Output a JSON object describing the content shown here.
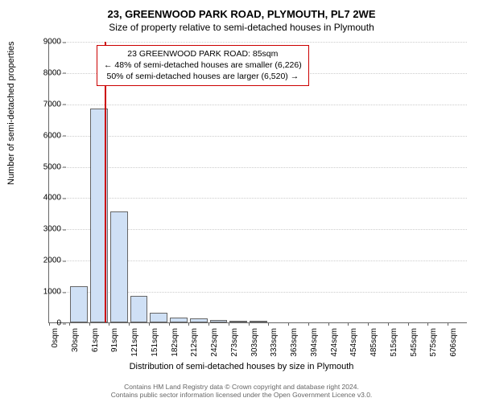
{
  "title_line1": "23, GREENWOOD PARK ROAD, PLYMOUTH, PL7 2WE",
  "title_line2": "Size of property relative to semi-detached houses in Plymouth",
  "chart": {
    "type": "bar",
    "ylabel": "Number of semi-detached properties",
    "xlabel": "Distribution of semi-detached houses by size in Plymouth",
    "ylim": [
      0,
      9000
    ],
    "ytick_step": 1000,
    "bar_fill": "#cfe0f5",
    "bar_border": "#666666",
    "grid_color": "#cccccc",
    "background_color": "#ffffff",
    "bar_width": 0.88,
    "xticks": [
      "0sqm",
      "30sqm",
      "61sqm",
      "91sqm",
      "121sqm",
      "151sqm",
      "182sqm",
      "212sqm",
      "242sqm",
      "273sqm",
      "303sqm",
      "333sqm",
      "363sqm",
      "394sqm",
      "424sqm",
      "454sqm",
      "485sqm",
      "515sqm",
      "545sqm",
      "575sqm",
      "606sqm"
    ],
    "values": [
      0,
      1150,
      6850,
      3550,
      850,
      300,
      150,
      120,
      80,
      50,
      40,
      0,
      0,
      0,
      0,
      0,
      0,
      0,
      0,
      0,
      0
    ],
    "marker_line": {
      "x_index": 2.8,
      "color": "#cc0000",
      "width": 2
    }
  },
  "annotation": {
    "line1": "23 GREENWOOD PARK ROAD: 85sqm",
    "line2": "← 48% of semi-detached houses are smaller (6,226)",
    "line3": "50% of semi-detached houses are larger (6,520) →",
    "border_color": "#cc0000"
  },
  "footer": {
    "line1": "Contains HM Land Registry data © Crown copyright and database right 2024.",
    "line2": "Contains public sector information licensed under the Open Government Licence v3.0."
  }
}
